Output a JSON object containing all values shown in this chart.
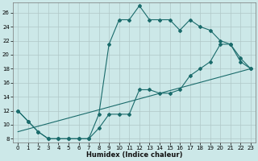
{
  "xlabel": "Humidex (Indice chaleur)",
  "ylabel": "",
  "background_color": "#cce8e8",
  "grid_color": "#b0c8c8",
  "line_color": "#1a6b6b",
  "xlim": [
    -0.5,
    23.5
  ],
  "ylim": [
    7.5,
    27.5
  ],
  "yticks": [
    8,
    10,
    12,
    14,
    16,
    18,
    20,
    22,
    24,
    26
  ],
  "xticks": [
    0,
    1,
    2,
    3,
    4,
    5,
    6,
    7,
    8,
    9,
    10,
    11,
    12,
    13,
    14,
    15,
    16,
    17,
    18,
    19,
    20,
    21,
    22,
    23
  ],
  "line1_x": [
    0,
    1,
    2,
    3,
    4,
    5,
    6,
    7,
    8,
    9,
    10,
    11,
    12,
    13,
    14,
    15,
    16,
    17,
    18,
    19,
    20,
    21,
    22,
    23
  ],
  "line1_y": [
    12,
    10.5,
    9,
    8,
    8,
    8,
    8,
    8,
    11.5,
    21.5,
    25,
    25,
    27,
    25,
    25,
    25,
    23.5,
    25,
    24,
    23.5,
    22,
    21.5,
    19,
    18
  ],
  "line2_x": [
    0,
    1,
    2,
    3,
    4,
    5,
    6,
    7,
    8,
    9,
    10,
    11,
    12,
    13,
    14,
    15,
    16,
    17,
    18,
    19,
    20,
    21,
    22,
    23
  ],
  "line2_y": [
    12,
    10.5,
    9,
    8,
    8,
    8,
    8,
    8,
    9.5,
    11.5,
    11.5,
    11.5,
    15,
    15,
    14.5,
    14.5,
    15,
    17,
    18,
    19,
    21.5,
    21.5,
    19.5,
    18
  ],
  "line3_x": [
    0,
    23
  ],
  "line3_y": [
    9,
    18
  ],
  "marker_style": "D",
  "marker_size": 2.0,
  "line_width": 0.8
}
